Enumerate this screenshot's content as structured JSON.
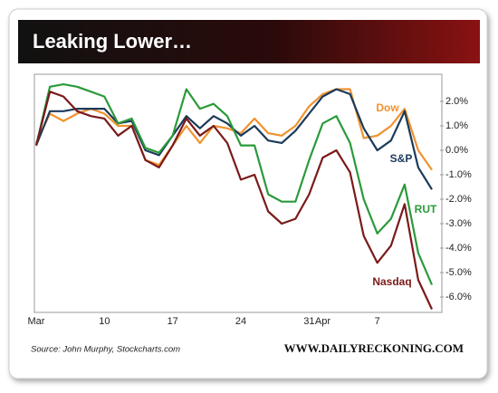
{
  "chart_data": {
    "type": "line",
    "title": "Leaking Lower…",
    "source": "Source: John Murphy, Stockcharts.com",
    "credit": "WWW.DAILYRECKONING.COM",
    "categories": [
      "Mar",
      null,
      null,
      null,
      null,
      "10",
      null,
      null,
      null,
      null,
      "17",
      null,
      null,
      null,
      null,
      "24",
      null,
      null,
      null,
      null,
      "31",
      "Apr",
      null,
      null,
      null,
      "7",
      null,
      null,
      null,
      null
    ],
    "series": [
      {
        "name": "Dow",
        "color": "#f0922e",
        "values": [
          0.3,
          1.5,
          1.2,
          1.5,
          1.7,
          1.5,
          1.0,
          1.0,
          -0.4,
          -0.6,
          0.2,
          1.0,
          0.3,
          1.0,
          0.9,
          0.7,
          1.3,
          0.7,
          0.6,
          1.0,
          1.8,
          2.3,
          2.5,
          2.5,
          0.5,
          0.6,
          1.0,
          1.7,
          0.0,
          -0.8
        ]
      },
      {
        "name": "S&P",
        "color": "#1b3a5a",
        "values": [
          0.2,
          1.6,
          1.6,
          1.7,
          1.7,
          1.7,
          1.1,
          1.2,
          0.0,
          -0.2,
          0.6,
          1.4,
          0.9,
          1.4,
          1.1,
          0.6,
          1.0,
          0.4,
          0.3,
          0.8,
          1.5,
          2.2,
          2.5,
          2.3,
          0.9,
          0.0,
          0.4,
          1.6,
          -0.7,
          -1.6
        ]
      },
      {
        "name": "RUT",
        "color": "#2a9a3a",
        "values": [
          0.2,
          2.6,
          2.7,
          2.6,
          2.4,
          2.2,
          1.1,
          1.3,
          0.1,
          -0.1,
          0.6,
          2.5,
          1.7,
          1.9,
          1.4,
          0.2,
          0.2,
          -1.8,
          -2.1,
          -2.1,
          -0.4,
          1.1,
          1.4,
          0.3,
          -2.0,
          -3.4,
          -2.8,
          -1.4,
          -4.2,
          -5.5
        ]
      },
      {
        "name": "Nasdaq",
        "color": "#7a1a1a",
        "values": [
          0.2,
          2.4,
          2.2,
          1.6,
          1.4,
          1.3,
          0.6,
          1.0,
          -0.4,
          -0.7,
          0.2,
          1.3,
          0.6,
          1.0,
          0.3,
          -1.2,
          -1.0,
          -2.5,
          -3.0,
          -2.8,
          -1.8,
          -0.3,
          0.0,
          -0.9,
          -3.5,
          -4.6,
          -3.9,
          -2.2,
          -5.3,
          -6.5
        ]
      }
    ],
    "ylim": [
      -6.63,
      3.11
    ],
    "yticks": [
      {
        "value": 2,
        "label": "2.0%"
      },
      {
        "value": 1,
        "label": "1.0%"
      },
      {
        "value": 0,
        "label": "0.0%"
      },
      {
        "value": -1,
        "label": "-1.0%"
      },
      {
        "value": -2,
        "label": "-2.0%"
      },
      {
        "value": -3,
        "label": "-3.0%"
      },
      {
        "value": -4,
        "label": "-4.0%"
      },
      {
        "value": -5,
        "label": "-5.0%"
      },
      {
        "value": -6,
        "label": "-6.0%"
      }
    ],
    "grid": false
  }
}
